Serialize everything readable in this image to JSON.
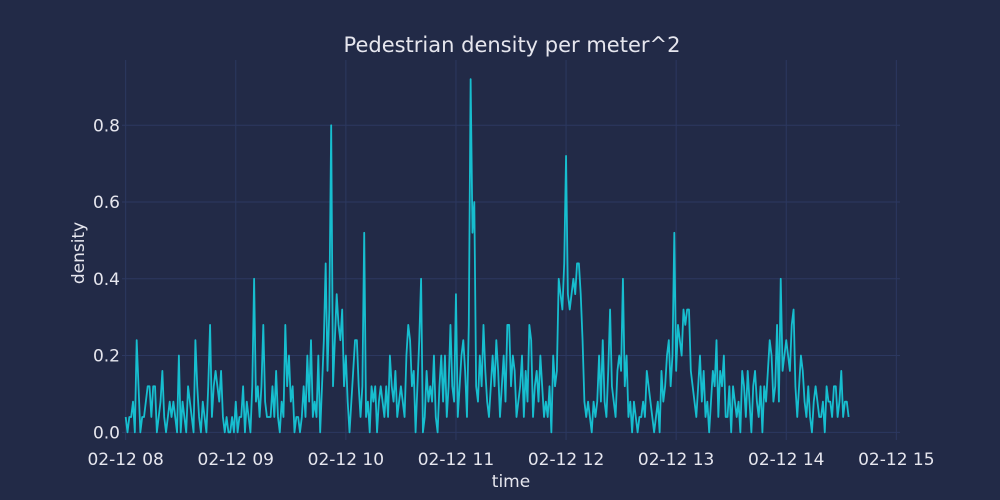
{
  "chart_data": {
    "type": "line",
    "title": "Pedestrian density per meter^2",
    "xlabel": "time",
    "ylabel": "density",
    "xlim": [
      "2012-02-12 07:58",
      "2012-02-12 15:02"
    ],
    "ylim": [
      -0.02,
      0.97
    ],
    "grid": true,
    "legend": "none",
    "xticks": [
      "02-12 08",
      "02-12 09",
      "02-12 10",
      "02-12 11",
      "02-12 12",
      "02-12 13",
      "02-12 14",
      "02-12 15"
    ],
    "yticks": [
      "0.0",
      "0.2",
      "0.4",
      "0.6",
      "0.8"
    ],
    "ytick_values": [
      0,
      0.2,
      0.4,
      0.6,
      0.8
    ],
    "colors": {
      "background": "#222a47",
      "line": "#17becf",
      "grid": "#2c3860",
      "text": "#e6e6ee"
    },
    "series": [
      {
        "x_start": "2012-02-12 08:00",
        "x_end": "2012-02-12 14:59",
        "interval_minutes": 1,
        "values": [
          0.04,
          0.0,
          0.04,
          0.04,
          0.08,
          0.0,
          0.24,
          0.12,
          0.0,
          0.04,
          0.04,
          0.08,
          0.12,
          0.12,
          0.04,
          0.12,
          0.12,
          0.0,
          0.04,
          0.08,
          0.16,
          0.04,
          0.0,
          0.04,
          0.08,
          0.04,
          0.08,
          0.04,
          0.0,
          0.2,
          0.0,
          0.08,
          0.04,
          0.0,
          0.12,
          0.08,
          0.04,
          0.0,
          0.24,
          0.12,
          0.04,
          0.0,
          0.08,
          0.04,
          0.0,
          0.12,
          0.28,
          0.04,
          0.12,
          0.16,
          0.12,
          0.08,
          0.16,
          0.04,
          0.0,
          0.04,
          0.0,
          0.0,
          0.04,
          0.0,
          0.08,
          0.0,
          0.04,
          0.04,
          0.12,
          0.0,
          0.08,
          0.04,
          0.0,
          0.12,
          0.4,
          0.08,
          0.12,
          0.04,
          0.12,
          0.28,
          0.08,
          0.04,
          0.04,
          0.04,
          0.12,
          0.04,
          0.16,
          0.04,
          0.0,
          0.08,
          0.04,
          0.28,
          0.12,
          0.2,
          0.08,
          0.12,
          0.0,
          0.04,
          0.04,
          0.0,
          0.04,
          0.12,
          0.04,
          0.2,
          0.08,
          0.24,
          0.04,
          0.08,
          0.04,
          0.2,
          0.0,
          0.12,
          0.24,
          0.44,
          0.16,
          0.32,
          0.8,
          0.12,
          0.24,
          0.36,
          0.28,
          0.24,
          0.32,
          0.12,
          0.2,
          0.08,
          0.0,
          0.08,
          0.16,
          0.24,
          0.24,
          0.12,
          0.04,
          0.12,
          0.52,
          0.04,
          0.08,
          0.0,
          0.12,
          0.08,
          0.12,
          0.0,
          0.08,
          0.12,
          0.08,
          0.04,
          0.12,
          0.04,
          0.2,
          0.12,
          0.08,
          0.16,
          0.04,
          0.08,
          0.12,
          0.08,
          0.04,
          0.2,
          0.28,
          0.24,
          0.12,
          0.16,
          0.0,
          0.12,
          0.24,
          0.4,
          0.0,
          0.04,
          0.16,
          0.08,
          0.12,
          0.08,
          0.2,
          0.04,
          0.0,
          0.12,
          0.2,
          0.08,
          0.2,
          0.04,
          0.12,
          0.28,
          0.12,
          0.08,
          0.36,
          0.04,
          0.12,
          0.2,
          0.24,
          0.16,
          0.04,
          0.28,
          0.92,
          0.52,
          0.6,
          0.12,
          0.08,
          0.2,
          0.12,
          0.28,
          0.16,
          0.08,
          0.04,
          0.12,
          0.2,
          0.12,
          0.24,
          0.16,
          0.04,
          0.12,
          0.2,
          0.08,
          0.28,
          0.28,
          0.12,
          0.2,
          0.16,
          0.04,
          0.08,
          0.12,
          0.2,
          0.04,
          0.16,
          0.08,
          0.28,
          0.24,
          0.04,
          0.12,
          0.16,
          0.08,
          0.2,
          0.12,
          0.04,
          0.08,
          0.04,
          0.12,
          0.0,
          0.2,
          0.12,
          0.16,
          0.4,
          0.36,
          0.32,
          0.44,
          0.72,
          0.36,
          0.32,
          0.36,
          0.4,
          0.36,
          0.44,
          0.44,
          0.36,
          0.24,
          0.08,
          0.04,
          0.08,
          0.04,
          0.0,
          0.08,
          0.04,
          0.08,
          0.2,
          0.08,
          0.24,
          0.08,
          0.04,
          0.16,
          0.32,
          0.12,
          0.08,
          0.04,
          0.16,
          0.2,
          0.16,
          0.4,
          0.12,
          0.2,
          0.04,
          0.08,
          0.0,
          0.08,
          0.04,
          0.0,
          0.04,
          0.04,
          0.08,
          0.04,
          0.16,
          0.12,
          0.08,
          0.04,
          0.0,
          0.04,
          0.08,
          0.0,
          0.16,
          0.08,
          0.12,
          0.2,
          0.24,
          0.12,
          0.2,
          0.52,
          0.16,
          0.28,
          0.24,
          0.2,
          0.32,
          0.28,
          0.32,
          0.32,
          0.16,
          0.12,
          0.08,
          0.04,
          0.12,
          0.2,
          0.08,
          0.16,
          0.04,
          0.08,
          0.0,
          0.08,
          0.16,
          0.12,
          0.24,
          0.04,
          0.16,
          0.12,
          0.2,
          0.04,
          0.04,
          0.12,
          0.0,
          0.12,
          0.08,
          0.04,
          0.08,
          0.0,
          0.16,
          0.12,
          0.04,
          0.16,
          0.08,
          0.0,
          0.12,
          0.16,
          0.08,
          0.04,
          0.12,
          0.0,
          0.12,
          0.08,
          0.16,
          0.24,
          0.2,
          0.08,
          0.12,
          0.28,
          0.08,
          0.4,
          0.16,
          0.2,
          0.24,
          0.2,
          0.16,
          0.28,
          0.32,
          0.12,
          0.04,
          0.12,
          0.2,
          0.16,
          0.08,
          0.04,
          0.12,
          0.04,
          0.0,
          0.08,
          0.12,
          0.08,
          0.04,
          0.04,
          0.08,
          0.0,
          0.12,
          0.08,
          0.08,
          0.04,
          0.12,
          0.12,
          0.04,
          0.08,
          0.16,
          0.04,
          0.08,
          0.08,
          0.04
        ]
      }
    ]
  }
}
